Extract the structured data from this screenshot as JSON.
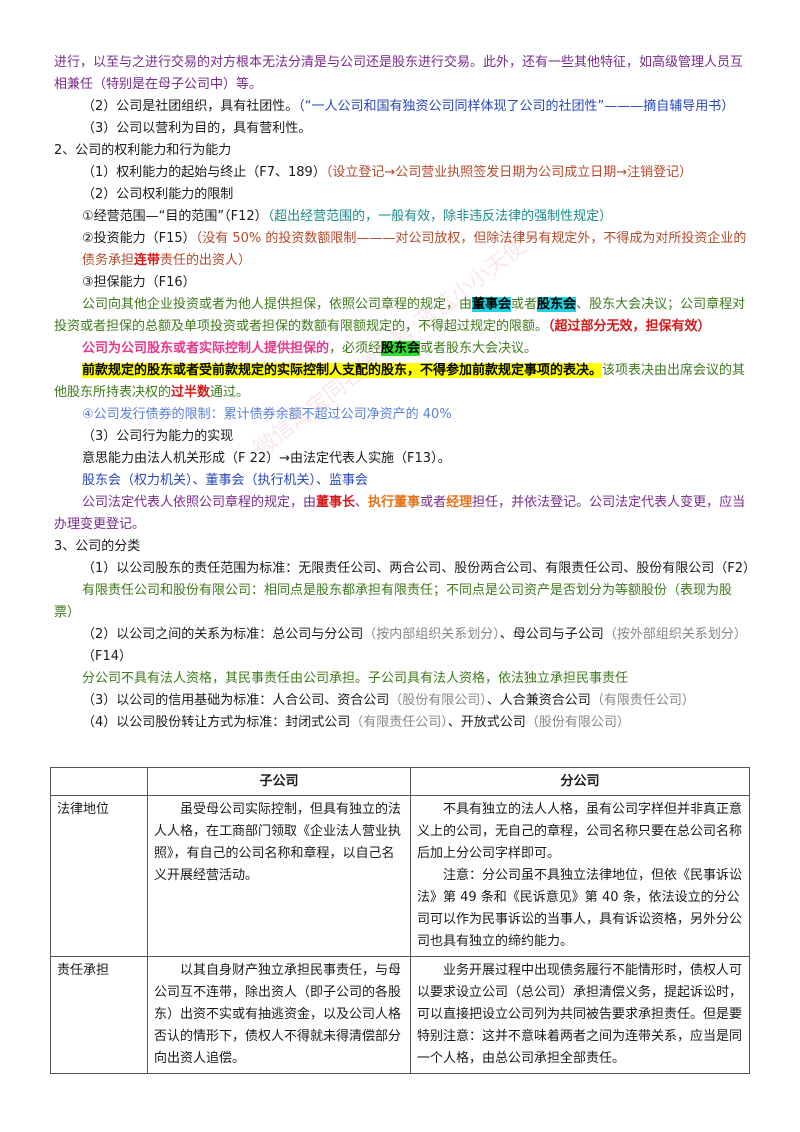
{
  "watermark": "微信淘宝同名微信号:蓝蓝小小天使",
  "p1": "进行，以至与之进行交易的对方根本无法分清是与公司还是股东进行交易。此外，还有一些其他特征，如高级管理人员互相兼任（特别是在母子公司中）等。",
  "p2_a": "（2）公司是社团组织，具有社团性。",
  "p2_b": "（“一人公司和国有独资公司同样体现了公司的社团性”———摘自辅导用书）",
  "p3": "（3）公司以营利为目的，具有营利性。",
  "h2": "2、公司的权利能力和行为能力",
  "r1_a": "（1）权利能力的起始与终止（F7、189）",
  "r1_b": "（设立登记→公司营业执照签发日期为公司成立日期→注销登记）",
  "r2": "（2）公司权利能力的限制",
  "r3_a": "①经营范围—“目的范围”（F12）",
  "r3_b": "（超出经营范围的，一般有效，除非违反法律的强制性规定）",
  "r4_a": "②投资能力（F15）",
  "r4_b": "（没有 50% 的投资数额限制———对公司放权，但除法律另有规定外，不得成为对所投资企业的债务承担",
  "r4_c": "连带",
  "r4_d": "责任的出资人）",
  "r5": "③担保能力（F16）",
  "g1_a": "公司向其他企业投资或者为他人提供担保，依照公司章程的规定，由",
  "g1_b": "董事会",
  "g1_c": "或者",
  "g1_d": "股东会",
  "g1_e": "、股东大会决议；公司章程对投资或者担保的总额及单项投资或者担保的数额有限额规定的，不得超过规定的限额。",
  "g1_f": "（超过部分无效，担保有效）",
  "g2_a": "公司为公司股东或者实际控制人提供担保的",
  "g2_b": "，必须经",
  "g2_c": "股东会",
  "g2_d": "或者股东大会决议。",
  "g3_a": "前款规定的股东或者受前款规定的实际控制人支配的股东，不得参加前款规定事项的表决。",
  "g3_b": "该项表决由出席会议的其他股东所持表决权的",
  "g3_c": "过半数",
  "g3_d": "通过。",
  "g4": "④公司发行债券的限制：累计债券余额不超过公司净资产的 40%",
  "a1": "（3）公司行为能力的实现",
  "a2": "意思能力由法人机关形成（F 22）→由法定代表人实施（F13）。",
  "a3": "股东会（权力机关）、董事会（执行机关）、监事会",
  "a4_a": "公司法定代表人依照公司章程的规定，由",
  "a4_b": "董事长",
  "a4_c": "、",
  "a4_d": "执行董事",
  "a4_e": "或者",
  "a4_f": "经理",
  "a4_g": "担任，并依法登记。公司法定代表人变更，应当办理变更登记。",
  "h3": "3、公司的分类",
  "c1": "（1）以公司股东的责任范围为标准：无限责任公司、两合公司、股份两合公司、有限责任公司、股份有限公司（F2）",
  "c2": "有限责任公司和股份有限公司：相同点是股东都承担有限责任；不同点是公司资产是否划分为等额股份（表现为股票）",
  "c3_a": "（2）以公司之间的关系为标准：总公司与分公司",
  "c3_b": "（按内部组织关系划分）",
  "c3_c": "、母公司与子公司",
  "c3_d": "（按外部组织关系划分）",
  "c3_e": "（F14）",
  "c4": "分公司不具有法人资格，其民事责任由公司承担。子公司具有法人资格，依法独立承担民事责任",
  "c5_a": "（3）以公司的信用基础为标准：人合公司、资合公司",
  "c5_b": "（股份有限公司）",
  "c5_c": "、人合兼资合公司",
  "c5_d": "（有限责任公司）",
  "c6_a": "（4）以公司股份转让方式为标准：封闭式公司",
  "c6_b": "（有限责任公司）",
  "c6_c": "、开放式公司",
  "c6_d": "（股份有限公司）",
  "table": {
    "headers": [
      "",
      "子公司",
      "分公司"
    ],
    "rows": [
      {
        "label": "法律地位",
        "sub": "虽受母公司实际控制，但具有独立的法人人格，在工商部门领取《企业法人营业执照》，有自己的公司名称和章程，以自己名义开展经营活动。",
        "branch1": "不具有独立的法人人格，虽有公司字样但并非真正意义上的公司，无自己的章程，公司名称只要在总公司名称后加上分公司字样即可。",
        "branch2": "注意：分公司虽不具独立法律地位，但依《民事诉讼法》第 49 条和《民诉意见》第 40 条，依法设立的分公司可以作为民事诉讼的当事人，具有诉讼资格，另外分公司也具有独立的缔约能力。"
      },
      {
        "label": "责任承担",
        "sub": "以其自身财产独立承担民事责任，与母公司互不连带，除出资人（即子公司的各股东）出资不实或有抽逃资金，以及公司人格否认的情形下，债权人不得就未得清偿部分向出资人追偿。",
        "branch1": "业务开展过程中出现债务履行不能情形时，债权人可以要求设立公司（总公司）承担清偿义务，提起诉讼时，可以直接把设立公司列为共同被告要求承担责任。但是要特别注意：这并不意味着两者之间为连带关系，应当是同一个人格，由总公司承担全部责任。",
        "branch2": ""
      }
    ]
  }
}
